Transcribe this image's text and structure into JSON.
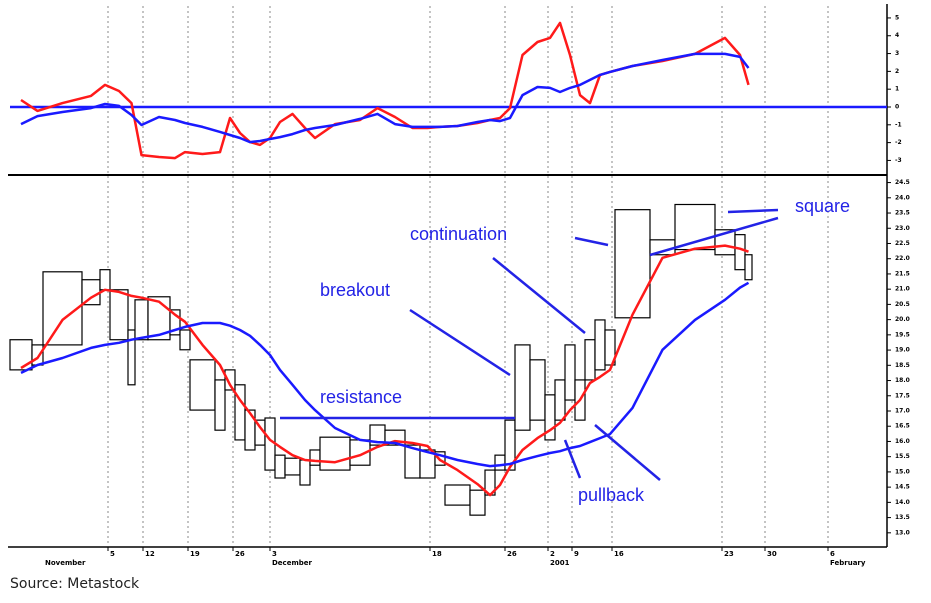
{
  "chart_data": [
    {
      "type": "line",
      "ylim": [
        -3.65,
        5.67
      ],
      "yticks": [
        5,
        4,
        3,
        2,
        1,
        0,
        -1,
        -2,
        -3
      ],
      "hline": 0,
      "hline_color": "#1a1aff",
      "series": [
        {
          "color": "#ff1a1a",
          "values": [
            0.39,
            -0.22,
            0.22,
            0.62,
            1.24,
            0.9,
            0.22,
            -2.7,
            -2.81,
            -2.87,
            -2.53,
            -2.64,
            -2.53,
            -0.62,
            -1.46,
            -1.97,
            -2.13,
            -1.74,
            -0.84,
            -0.39,
            -1.18,
            -1.74,
            -0.96,
            -0.73,
            -0.06,
            -0.56,
            -1.18,
            -1.18,
            -1.12,
            -1.07,
            -0.9,
            -0.73,
            -0.62,
            -0.06,
            2.92,
            3.65,
            3.88,
            4.72,
            2.92,
            0.67,
            0.22,
            1.8,
            1.97,
            2.3,
            2.58,
            2.98,
            3.88,
            2.92,
            1.24
          ]
        },
        {
          "color": "#1a1aff",
          "values": [
            -0.96,
            -0.51,
            -0.28,
            -0.06,
            0.17,
            0.06,
            -0.45,
            -1.01,
            -0.56,
            -0.73,
            -0.9,
            -1.12,
            -1.4,
            -1.57,
            -1.74,
            -1.97,
            -1.91,
            -1.8,
            -1.69,
            -1.52,
            -1.29,
            -1.18,
            -1.01,
            -0.67,
            -0.39,
            -0.96,
            -1.12,
            -1.12,
            -1.12,
            -1.07,
            -0.84,
            -0.73,
            -0.79,
            -0.62,
            0.67,
            1.12,
            1.07,
            0.84,
            1.07,
            1.24,
            1.52,
            1.8,
            1.97,
            2.3,
            2.64,
            2.98,
            2.98,
            2.81,
            2.19
          ]
        }
      ]
    },
    {
      "type": "equivolume",
      "ylim": [
        12.6,
        24.65
      ],
      "yticks": [
        {
          "value": 13,
          "label": "13.0"
        },
        13.5,
        {
          "value": 14,
          "label": "14.0"
        },
        14.5,
        {
          "value": 15,
          "label": "15.0"
        },
        15.5,
        {
          "value": 16,
          "label": "16.0"
        },
        16.5,
        {
          "value": 17,
          "label": "17.0"
        },
        17.5,
        {
          "value": 18,
          "label": "18.0"
        },
        18.5,
        {
          "value": 19,
          "label": "19.0"
        },
        19.5,
        {
          "value": 20,
          "label": "20.0"
        },
        20.5,
        {
          "value": 21,
          "label": "21.0"
        },
        21.5,
        {
          "value": 22,
          "label": "22.0"
        },
        22.5,
        {
          "value": 23,
          "label": "23.0"
        },
        23.5,
        {
          "value": 24,
          "label": "24.0"
        },
        24.5
      ],
      "xlim": [
        0,
        875
      ],
      "xticks": [
        {
          "value": 98,
          "label": "5"
        },
        {
          "value": 133,
          "label": "12"
        },
        {
          "value": 178,
          "label": "19"
        },
        {
          "value": 223,
          "label": "26"
        },
        {
          "value": 260,
          "label": "3"
        },
        {
          "value": 420,
          "label": "18"
        },
        {
          "value": 495,
          "label": "26"
        },
        {
          "value": 538,
          "label": "2"
        },
        {
          "value": 562,
          "label": "9"
        },
        {
          "value": 602,
          "label": "16"
        },
        {
          "value": 712,
          "label": "23"
        },
        {
          "value": 755,
          "label": "30"
        },
        {
          "value": 818,
          "label": "6"
        }
      ],
      "month_ticks": [
        {
          "value": 33,
          "label": "November"
        },
        {
          "value": 260,
          "label": "December"
        },
        {
          "value": 538,
          "label": "2001"
        },
        {
          "value": 818,
          "label": "February"
        }
      ],
      "grid": true,
      "high": [
        19.34,
        19.17,
        21.57,
        21.31,
        21.64,
        20.98,
        19.66,
        20.65,
        20.75,
        20.32,
        19.66,
        18.68,
        18.02,
        18.35,
        17.86,
        17.03,
        16.7,
        16.77,
        15.55,
        15.45,
        15.39,
        15.72,
        16.14,
        16.05,
        16.54,
        16.37,
        15.88,
        15.72,
        15.66,
        14.57,
        14.4,
        15.06,
        15.55,
        16.7,
        19.17,
        18.68,
        17.53,
        18.02,
        19.17,
        18.02,
        19.34,
        19.99,
        19.66,
        23.61,
        22.62,
        23.78,
        22.95,
        22.79,
        22.13
      ],
      "low": [
        18.35,
        18.51,
        19.17,
        20.49,
        20.98,
        19.34,
        17.86,
        19.34,
        19.34,
        19.5,
        19.01,
        17.03,
        16.37,
        17.69,
        16.05,
        15.72,
        15.88,
        15.06,
        14.8,
        14.9,
        14.57,
        15.22,
        15.06,
        15.22,
        15.88,
        15.88,
        14.8,
        14.8,
        15.22,
        13.91,
        13.58,
        14.24,
        15.06,
        15.06,
        16.37,
        16.7,
        16.05,
        16.7,
        17.36,
        16.7,
        18.02,
        18.35,
        18.51,
        20.06,
        22.13,
        22.3,
        22.13,
        21.64,
        21.31
      ],
      "volumes": [
        22,
        11,
        39,
        18,
        10,
        18,
        7,
        13,
        22,
        10,
        10,
        25,
        10,
        10,
        10,
        10,
        10,
        10,
        10,
        15,
        10,
        10,
        30,
        20,
        15,
        20,
        15,
        15,
        10,
        25,
        15,
        10,
        10,
        10,
        15,
        15,
        10,
        10,
        10,
        10,
        10,
        10,
        10,
        35,
        25,
        40,
        20,
        10,
        7
      ],
      "series": [
        {
          "color": "#ff1a1a",
          "values": [
            18.41,
            18.74,
            19.99,
            20.72,
            20.98,
            20.91,
            20.78,
            20.72,
            20.59,
            20.16,
            19.93,
            19.17,
            18.51,
            17.86,
            17.36,
            16.93,
            16.47,
            16.05,
            15.82,
            15.55,
            15.39,
            15.36,
            15.32,
            15.55,
            15.82,
            16.01,
            15.95,
            15.85,
            15.39,
            15.06,
            14.6,
            14.24,
            14.57,
            15.16,
            15.72,
            16.11,
            16.37,
            16.61,
            17.03,
            17.36,
            17.92,
            18.12,
            18.35,
            20.16,
            22.03,
            22.33,
            22.43,
            22.33,
            22.23
          ]
        },
        {
          "color": "#1a1aff",
          "values": [
            18.25,
            18.51,
            18.74,
            19.07,
            19.17,
            19.24,
            19.34,
            19.4,
            19.5,
            19.66,
            19.76,
            19.89,
            19.89,
            19.8,
            19.66,
            19.47,
            19.17,
            18.84,
            18.35,
            17.86,
            17.36,
            17.03,
            16.44,
            16.05,
            15.98,
            15.95,
            15.78,
            15.65,
            15.55,
            15.39,
            15.26,
            15.19,
            15.22,
            15.26,
            15.39,
            15.52,
            15.62,
            15.68,
            15.78,
            15.85,
            15.98,
            16.11,
            16.24,
            17.1,
            19.01,
            19.99,
            20.65,
            21.05,
            21.21
          ]
        }
      ],
      "annotations": [
        "square",
        "continuation",
        "breakout",
        "resistance",
        "pullback"
      ],
      "annotation_color": "#2323e6"
    }
  ],
  "source": "Source: Metastock"
}
